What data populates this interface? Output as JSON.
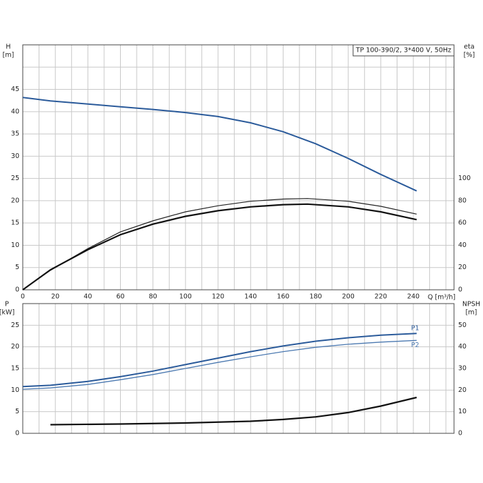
{
  "chart_data": [
    {
      "type": "line",
      "title": "TP 100-390/2, 3*400 V, 50Hz",
      "y_label": "H",
      "y_unit": "[m]",
      "y2_label": "eta",
      "y2_unit": "[%]",
      "x_label": "Q [m³/h]",
      "xlim": [
        0,
        265
      ],
      "xticks": [
        0,
        20,
        40,
        60,
        80,
        100,
        120,
        140,
        160,
        180,
        200,
        220,
        240
      ],
      "ylim": [
        0,
        55
      ],
      "yticks": [
        0,
        5,
        10,
        15,
        20,
        25,
        30,
        35,
        40,
        45
      ],
      "y2lim": [
        0,
        220
      ],
      "y2ticks": [
        0,
        20,
        40,
        60,
        80,
        100
      ],
      "show_xtick_labels": true,
      "grid": true,
      "series": [
        {
          "color": "#2a5a9a",
          "width": 2,
          "x": [
            0,
            17,
            40,
            60,
            80,
            100,
            120,
            140,
            160,
            180,
            200,
            220,
            242
          ],
          "values": [
            43.2,
            42.4,
            41.7,
            41.1,
            40.5,
            39.8,
            38.9,
            37.5,
            35.5,
            32.8,
            29.5,
            25.9,
            22.2
          ]
        },
        {
          "color": "#222222",
          "width": 1.2,
          "axis": "y2",
          "x": [
            0,
            17,
            40,
            60,
            80,
            100,
            120,
            140,
            160,
            175,
            200,
            220,
            242
          ],
          "values": [
            0,
            17.5,
            37,
            52,
            62,
            70,
            75.5,
            79.5,
            81.5,
            82,
            79.5,
            75,
            68
          ]
        },
        {
          "color": "#111111",
          "width": 2.2,
          "axis": "y2",
          "x": [
            0,
            17,
            40,
            60,
            80,
            100,
            120,
            140,
            160,
            175,
            200,
            220,
            242
          ],
          "values": [
            0,
            18,
            36,
            49.5,
            59,
            66,
            71,
            74.5,
            76.5,
            77,
            74.5,
            70,
            63
          ]
        }
      ]
    },
    {
      "type": "line",
      "y_label": "P",
      "y_unit": "[kW]",
      "y2_label": "NPSH",
      "y2_unit": "[m]",
      "xlim": [
        0,
        265
      ],
      "xticks": [
        0,
        20,
        40,
        60,
        80,
        100,
        120,
        140,
        160,
        180,
        200,
        220,
        240
      ],
      "ylim": [
        0,
        30
      ],
      "yticks": [
        0,
        5,
        10,
        15,
        20,
        25
      ],
      "y2lim": [
        0,
        60
      ],
      "y2ticks": [
        0,
        10,
        20,
        30,
        40,
        50
      ],
      "show_xtick_labels": false,
      "grid": true,
      "series": [
        {
          "label": "P1",
          "color": "#2a5a9a",
          "width": 2,
          "x": [
            0,
            17,
            40,
            60,
            80,
            100,
            120,
            140,
            160,
            180,
            200,
            220,
            242
          ],
          "values": [
            10.8,
            11.1,
            12.0,
            13.1,
            14.4,
            15.9,
            17.4,
            18.9,
            20.2,
            21.3,
            22.1,
            22.7,
            23.1
          ]
        },
        {
          "label": "P2",
          "color": "#4a78b0",
          "width": 1.3,
          "x": [
            0,
            17,
            40,
            60,
            80,
            100,
            120,
            140,
            160,
            180,
            200,
            220,
            242
          ],
          "values": [
            10.2,
            10.5,
            11.3,
            12.4,
            13.6,
            15.0,
            16.4,
            17.7,
            18.9,
            19.9,
            20.6,
            21.1,
            21.5
          ]
        },
        {
          "color": "#111111",
          "width": 2.2,
          "axis": "y2",
          "x": [
            17,
            60,
            100,
            140,
            160,
            180,
            200,
            220,
            242
          ],
          "values": [
            4,
            4.3,
            4.8,
            5.6,
            6.4,
            7.6,
            9.6,
            12.6,
            16.6
          ]
        }
      ]
    }
  ]
}
